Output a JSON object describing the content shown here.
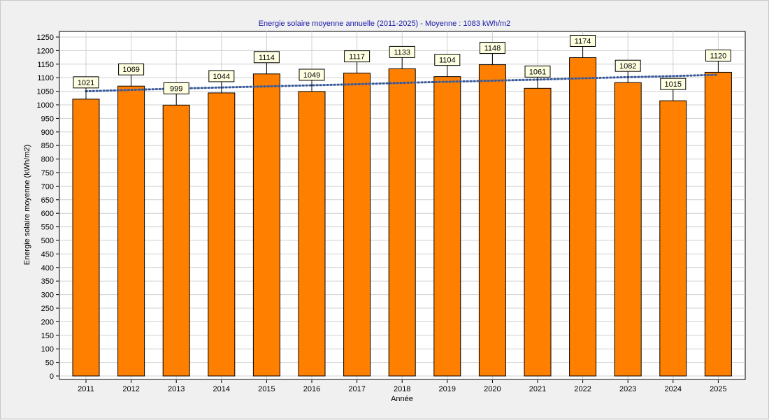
{
  "chart_data": {
    "type": "bar",
    "title": "Energie solaire moyenne annuelle (2011-2025) - Moyenne : 1083 kWh/m2",
    "xlabel": "Année",
    "ylabel": "Energie solaire moyenne (kWh/m2)",
    "categories": [
      "2011",
      "2012",
      "2013",
      "2014",
      "2015",
      "2016",
      "2017",
      "2018",
      "2019",
      "2020",
      "2021",
      "2022",
      "2023",
      "2024",
      "2025"
    ],
    "series": [
      {
        "values": [
          1021,
          1069,
          999,
          1044,
          1114,
          1049,
          1117,
          1133,
          1104,
          1148,
          1061,
          1174,
          1082,
          1015,
          1120
        ],
        "color": "#ff8000"
      },
      {
        "type": "trendline",
        "values": [
          1050,
          1055,
          1060,
          1064,
          1068,
          1072,
          1076,
          1081,
          1085,
          1089,
          1093,
          1098,
          1102,
          1106,
          1111
        ],
        "color": "#3a5a9a"
      }
    ],
    "data_labels": [
      "1021",
      "1069",
      "999",
      "1044",
      "1114",
      "1049",
      "1117",
      "1133",
      "1104",
      "1148",
      "1061",
      "1174",
      "1082",
      "1015",
      "1120"
    ],
    "ylim": [
      0,
      1250
    ],
    "yticks": [
      0,
      50,
      100,
      150,
      200,
      250,
      300,
      350,
      400,
      450,
      500,
      550,
      600,
      650,
      700,
      750,
      800,
      850,
      900,
      950,
      1000,
      1050,
      1100,
      1150,
      1200,
      1250
    ],
    "grid": true,
    "legend": "none",
    "colors": {
      "bar": "#ff8000",
      "bar_stroke": "#000000",
      "trend": "#3a5a9a",
      "plot_bg": "#ffffff",
      "grid": "#d0d0d0",
      "label_bg": "#ffffe1",
      "title": "#1a1aa8"
    }
  }
}
